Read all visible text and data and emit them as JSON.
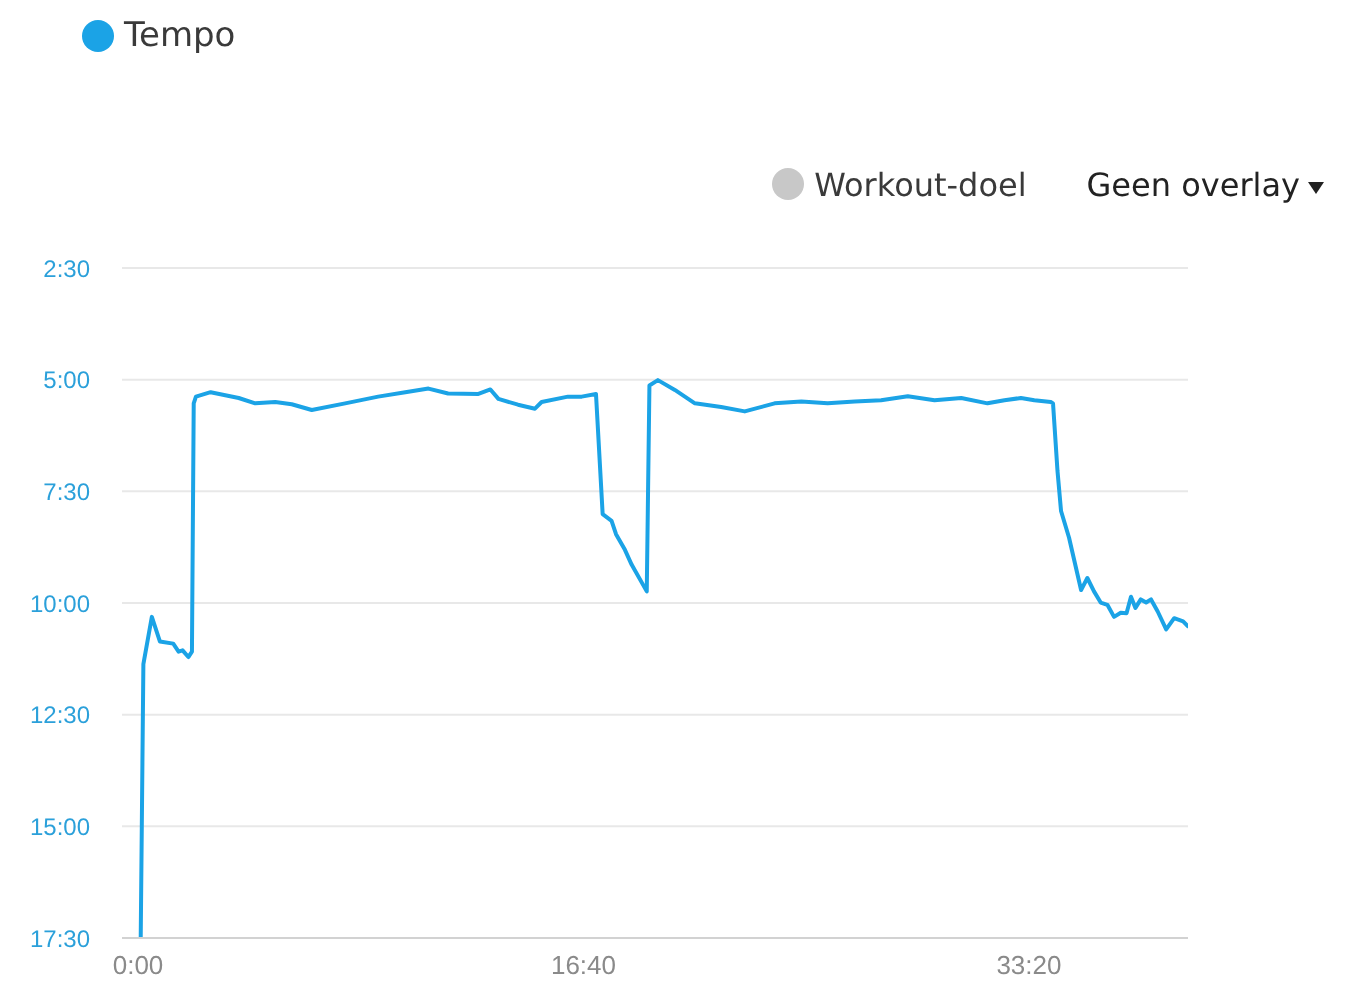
{
  "chart_data": {
    "type": "line",
    "x": [
      6,
      12,
      31,
      49,
      79,
      91,
      100,
      113,
      121,
      125,
      130,
      163,
      226,
      263,
      308,
      345,
      390,
      465,
      539,
      600,
      652,
      696,
      764,
      791,
      809,
      853,
      891,
      906,
      965,
      996,
      1028,
      1043,
      1063,
      1073,
      1093,
      1108,
      1142,
      1148,
      1167,
      1205,
      1250,
      1309,
      1362,
      1429,
      1489,
      1548,
      1609,
      1668,
      1728,
      1788,
      1848,
      1907,
      1945,
      1982,
      2012,
      2049,
      2054,
      2064,
      2072,
      2090,
      2102,
      2117,
      2131,
      2146,
      2161,
      2176,
      2191,
      2206,
      2219,
      2229,
      2239,
      2251,
      2263,
      2274,
      2289,
      2308,
      2326,
      2346,
      2357
    ],
    "series": [
      {
        "name": "Tempo",
        "color": "#1ba3e6",
        "values": [
          17.5,
          11.37,
          10.31,
          10.86,
          10.91,
          11.09,
          11.06,
          11.21,
          11.09,
          5.53,
          5.38,
          5.28,
          5.41,
          5.53,
          5.5,
          5.55,
          5.68,
          5.53,
          5.38,
          5.28,
          5.2,
          5.31,
          5.32,
          5.22,
          5.43,
          5.56,
          5.65,
          5.5,
          5.38,
          5.38,
          5.32,
          8.01,
          8.16,
          8.46,
          8.81,
          9.14,
          9.74,
          5.13,
          5.01,
          5.23,
          5.53,
          5.61,
          5.71,
          5.53,
          5.49,
          5.53,
          5.49,
          5.46,
          5.37,
          5.46,
          5.41,
          5.53,
          5.46,
          5.41,
          5.46,
          5.5,
          5.53,
          7.04,
          7.94,
          8.54,
          9.06,
          9.71,
          9.44,
          9.74,
          9.99,
          10.04,
          10.31,
          10.22,
          10.23,
          9.86,
          10.11,
          9.92,
          9.99,
          9.92,
          10.19,
          10.59,
          10.34,
          10.41,
          10.52
        ]
      },
      {
        "name": "Workout-doel",
        "color": "#c8c8c8",
        "values": [
          null,
          null,
          null,
          null,
          null,
          null,
          null,
          null,
          null,
          null,
          null,
          null,
          null,
          null,
          null,
          null,
          null,
          null,
          null,
          null,
          null,
          null,
          null,
          null,
          null,
          null,
          null,
          null,
          null,
          null,
          null,
          null,
          null,
          null,
          null,
          null,
          null,
          null,
          null,
          null,
          null,
          null,
          null,
          null,
          null,
          null,
          null,
          null,
          null,
          null,
          null,
          null,
          null,
          null,
          null,
          null,
          null,
          null,
          null,
          null,
          null,
          null,
          null,
          null,
          null,
          null,
          null,
          null,
          null,
          null,
          null,
          null,
          null,
          null,
          null,
          null,
          null,
          null,
          null
        ]
      }
    ],
    "xlim": [
      -36,
      2357
    ],
    "xticks": [
      {
        "value": 0,
        "label": "0:00"
      },
      {
        "value": 1000,
        "label": "16:40"
      },
      {
        "value": 2000,
        "label": "33:20"
      }
    ],
    "ylim": [
      17.5,
      2.5
    ],
    "yticks": [
      {
        "value": 2.5,
        "label": "2:30"
      },
      {
        "value": 5,
        "label": "5:00"
      },
      {
        "value": 7.5,
        "label": "7:30"
      },
      {
        "value": 10,
        "label": "10:00"
      },
      {
        "value": 12.5,
        "label": "12:30"
      },
      {
        "value": 15,
        "label": "15:00"
      },
      {
        "value": 17.5,
        "label": "17:30"
      }
    ],
    "grid": "y",
    "legend": "top",
    "annotations": [
      "Geen overlay"
    ]
  }
}
